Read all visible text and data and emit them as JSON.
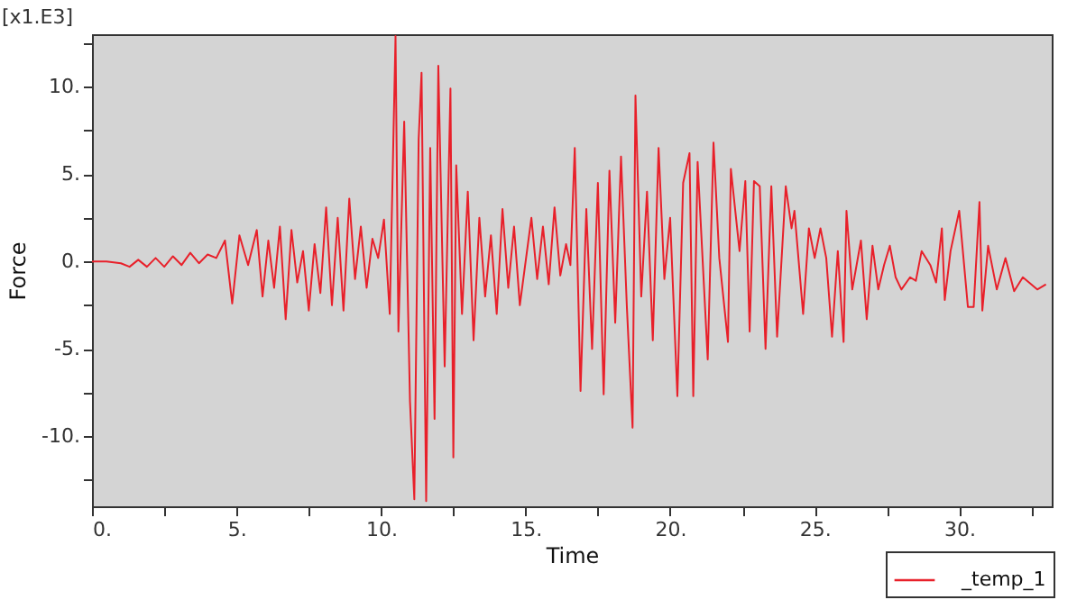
{
  "chart_data": {
    "type": "line",
    "xlabel": "Time",
    "ylabel": "Force",
    "annotations": [
      "[x1.E3]"
    ],
    "x": [
      0,
      0.5,
      1.0,
      1.3,
      1.6,
      1.9,
      2.2,
      2.5,
      2.8,
      3.1,
      3.4,
      3.7,
      4.0,
      4.3,
      4.6,
      4.85,
      5.1,
      5.4,
      5.7,
      5.9,
      6.1,
      6.3,
      6.5,
      6.7,
      6.9,
      7.1,
      7.3,
      7.5,
      7.7,
      7.9,
      8.1,
      8.3,
      8.5,
      8.7,
      8.9,
      9.1,
      9.3,
      9.5,
      9.7,
      9.9,
      10.1,
      10.3,
      10.5,
      10.6,
      10.8,
      11.0,
      11.15,
      11.3,
      11.4,
      11.56,
      11.7,
      11.85,
      11.98,
      12.2,
      12.4,
      12.5,
      12.6,
      12.8,
      13.0,
      13.2,
      13.4,
      13.6,
      13.8,
      14.0,
      14.2,
      14.4,
      14.6,
      14.8,
      15.0,
      15.2,
      15.4,
      15.6,
      15.8,
      16.0,
      16.2,
      16.4,
      16.55,
      16.7,
      16.9,
      17.1,
      17.3,
      17.5,
      17.7,
      17.9,
      18.1,
      18.3,
      18.5,
      18.7,
      18.8,
      19.0,
      19.2,
      19.4,
      19.6,
      19.8,
      20.0,
      20.25,
      20.45,
      20.67,
      20.8,
      20.95,
      21.3,
      21.5,
      21.7,
      22.0,
      22.1,
      22.4,
      22.6,
      22.75,
      22.9,
      23.1,
      23.3,
      23.5,
      23.7,
      24.0,
      24.2,
      24.3,
      24.6,
      24.8,
      25.0,
      25.2,
      25.4,
      25.6,
      25.8,
      26.0,
      26.1,
      26.3,
      26.6,
      26.8,
      27.0,
      27.2,
      27.4,
      27.6,
      27.8,
      28.0,
      28.3,
      28.5,
      28.7,
      29.0,
      29.2,
      29.4,
      29.5,
      29.7,
      30.0,
      30.3,
      30.5,
      30.7,
      30.8,
      31.0,
      31.3,
      31.6,
      31.9,
      32.2,
      32.7,
      33.0
    ],
    "series": [
      {
        "name": "_temp_1",
        "color": "#e8202a",
        "values": [
          0,
          0,
          -0.1,
          -0.3,
          0.1,
          -0.3,
          0.2,
          -0.3,
          0.3,
          -0.2,
          0.5,
          -0.1,
          0.4,
          0.2,
          1.2,
          -2.4,
          1.5,
          -0.2,
          1.8,
          -2.0,
          1.2,
          -1.5,
          2.0,
          -3.3,
          1.8,
          -1.2,
          0.6,
          -2.8,
          1.0,
          -1.8,
          3.1,
          -2.5,
          2.5,
          -2.8,
          3.6,
          -1.0,
          2.0,
          -1.5,
          1.3,
          0.2,
          2.4,
          -3.0,
          12.9,
          -4.0,
          8.0,
          -8.0,
          -13.6,
          7.0,
          10.8,
          -13.7,
          6.5,
          -9.0,
          11.2,
          -6.0,
          9.9,
          -11.2,
          5.5,
          -3.0,
          4.0,
          -4.5,
          2.5,
          -2.0,
          1.5,
          -3.0,
          3.0,
          -1.5,
          2.0,
          -2.5,
          0.0,
          2.5,
          -1.0,
          2.0,
          -1.3,
          3.1,
          -0.8,
          1.0,
          -0.2,
          6.5,
          -7.4,
          3.0,
          -5.0,
          4.5,
          -7.6,
          5.2,
          -3.5,
          6.0,
          -2.5,
          -9.5,
          9.5,
          -2.0,
          4.0,
          -4.5,
          6.5,
          -1.0,
          2.5,
          -7.7,
          4.5,
          6.2,
          -7.7,
          5.7,
          -5.6,
          6.8,
          0.2,
          -4.6,
          5.3,
          0.6,
          4.6,
          -4.0,
          4.6,
          4.3,
          -5.0,
          4.3,
          -4.3,
          4.3,
          1.9,
          2.9,
          -3.0,
          1.9,
          0.2,
          1.9,
          0.2,
          -4.3,
          0.6,
          -4.6,
          2.9,
          -1.6,
          1.2,
          -3.3,
          0.9,
          -1.6,
          -0.2,
          0.9,
          -0.9,
          -1.6,
          -0.9,
          -1.1,
          0.6,
          -0.2,
          -1.2,
          1.9,
          -2.2,
          0.6,
          2.9,
          -2.6,
          -2.6,
          3.4,
          -2.8,
          0.9,
          -1.6,
          0.2,
          -1.7,
          -0.9,
          -1.6,
          -1.3
        ]
      }
    ],
    "xlim": [
      0,
      33.2
    ],
    "ylim": [
      -14,
      13
    ],
    "xticks": [
      {
        "value": 0,
        "label": "0."
      },
      {
        "value": 2.5,
        "label": null
      },
      {
        "value": 5,
        "label": "5."
      },
      {
        "value": 7.5,
        "label": null
      },
      {
        "value": 10,
        "label": "10."
      },
      {
        "value": 12.5,
        "label": null
      },
      {
        "value": 15,
        "label": "15."
      },
      {
        "value": 17.5,
        "label": null
      },
      {
        "value": 20,
        "label": "20."
      },
      {
        "value": 22.5,
        "label": null
      },
      {
        "value": 25,
        "label": "25."
      },
      {
        "value": 27.5,
        "label": null
      },
      {
        "value": 30,
        "label": "30."
      },
      {
        "value": 32.5,
        "label": null
      }
    ],
    "yticks": [
      {
        "value": -12.5,
        "label": null
      },
      {
        "value": -10,
        "label": "-10."
      },
      {
        "value": -7.5,
        "label": null
      },
      {
        "value": -5,
        "label": "-5."
      },
      {
        "value": -2.5,
        "label": null
      },
      {
        "value": 0,
        "label": "0."
      },
      {
        "value": 2.5,
        "label": null
      },
      {
        "value": 5,
        "label": "5."
      },
      {
        "value": 7.5,
        "label": null
      },
      {
        "value": 10,
        "label": "10."
      },
      {
        "value": 12.5,
        "label": null
      }
    ],
    "legend": "bottom right"
  }
}
